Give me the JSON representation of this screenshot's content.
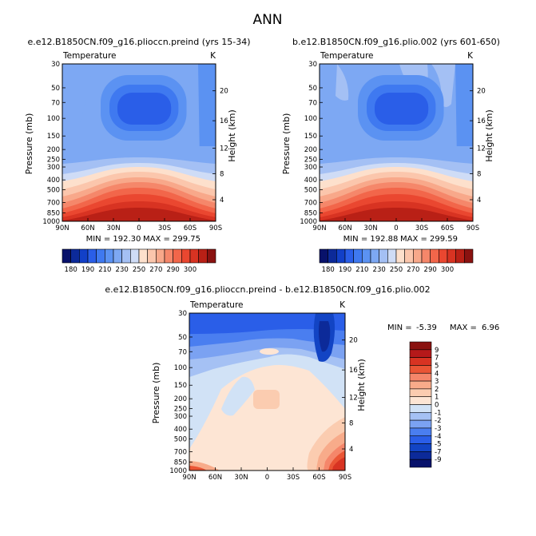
{
  "page_title": "ANN",
  "colors": {
    "main_palette": [
      "#08126b",
      "#0c2a99",
      "#1240c8",
      "#2a5ee8",
      "#3f79f0",
      "#5b92f2",
      "#7da8f3",
      "#a4c0f4",
      "#cfdcf6",
      "#fde0cc",
      "#fbc6ac",
      "#f8a88a",
      "#f5876a",
      "#f2664a",
      "#ea4730",
      "#d83322",
      "#b92016",
      "#8a1210"
    ],
    "diff_palette": [
      "#08126b",
      "#0c2a99",
      "#1244c4",
      "#2a5ee8",
      "#4a7ef0",
      "#7ba2f2",
      "#a5c1f4",
      "#d1e2f6",
      "#fde5d4",
      "#fbccb0",
      "#f8ab8a",
      "#f5866a",
      "#ea5535",
      "#d83322",
      "#b5191a",
      "#8a1210"
    ]
  },
  "chart_data": [
    {
      "type": "heatmap",
      "title": "e.e12.B1850CN.f09_g16.plioccn.preind (yrs 15-34)",
      "variable": "Temperature",
      "units": "K",
      "ylabel": "Pressure (mb)",
      "y2label": "Height (km)",
      "x_ticks": [
        "90N",
        "60N",
        "30N",
        "0",
        "30S",
        "60S",
        "90S"
      ],
      "y_ticks": [
        "30",
        "50",
        "70",
        "100",
        "150",
        "200",
        "250",
        "300",
        "400",
        "500",
        "700",
        "850",
        "1000"
      ],
      "y2_ticks": [
        "20",
        "16",
        "12",
        "8",
        "4"
      ],
      "min_label": "MIN = 192.30",
      "max_label": "MAX = 299.75",
      "min": 192.3,
      "max": 299.75,
      "colorbar_ticks": [
        "180",
        "190",
        "210",
        "230",
        "250",
        "270",
        "290",
        "300"
      ]
    },
    {
      "type": "heatmap",
      "title": "b.e12.B1850CN.f09_g16.plio.002 (yrs 601-650)",
      "variable": "Temperature",
      "units": "K",
      "ylabel": "Pressure (mb)",
      "y2label": "Height (km)",
      "x_ticks": [
        "90N",
        "60N",
        "30N",
        "0",
        "30S",
        "60S",
        "90S"
      ],
      "y_ticks": [
        "30",
        "50",
        "70",
        "100",
        "150",
        "200",
        "250",
        "300",
        "400",
        "500",
        "700",
        "850",
        "1000"
      ],
      "y2_ticks": [
        "20",
        "16",
        "12",
        "8",
        "4"
      ],
      "min_label": "MIN = 192.88",
      "max_label": "MAX = 299.59",
      "min": 192.88,
      "max": 299.59,
      "colorbar_ticks": [
        "180",
        "190",
        "210",
        "230",
        "250",
        "270",
        "290",
        "300"
      ]
    },
    {
      "type": "heatmap",
      "title": "e.e12.B1850CN.f09_g16.plioccn.preind - b.e12.B1850CN.f09_g16.plio.002",
      "variable": "Temperature",
      "units": "K",
      "ylabel": "Pressure (mb)",
      "y2label": "Height (km)",
      "x_ticks": [
        "90N",
        "60N",
        "30N",
        "0",
        "30S",
        "60S",
        "90S"
      ],
      "y_ticks": [
        "30",
        "50",
        "70",
        "100",
        "150",
        "200",
        "250",
        "300",
        "400",
        "500",
        "700",
        "850",
        "1000"
      ],
      "y2_ticks": [
        "20",
        "16",
        "12",
        "8",
        "4"
      ],
      "min_label": "MIN =",
      "min_value": "-5.39",
      "max_label": "MAX =",
      "max_value": "6.96",
      "min": -5.39,
      "max": 6.96,
      "colorbar_ticks": [
        "9",
        "7",
        "5",
        "4",
        "3",
        "2",
        "1",
        "0",
        "-1",
        "-2",
        "-3",
        "-4",
        "-5",
        "-7",
        "-9"
      ]
    }
  ]
}
